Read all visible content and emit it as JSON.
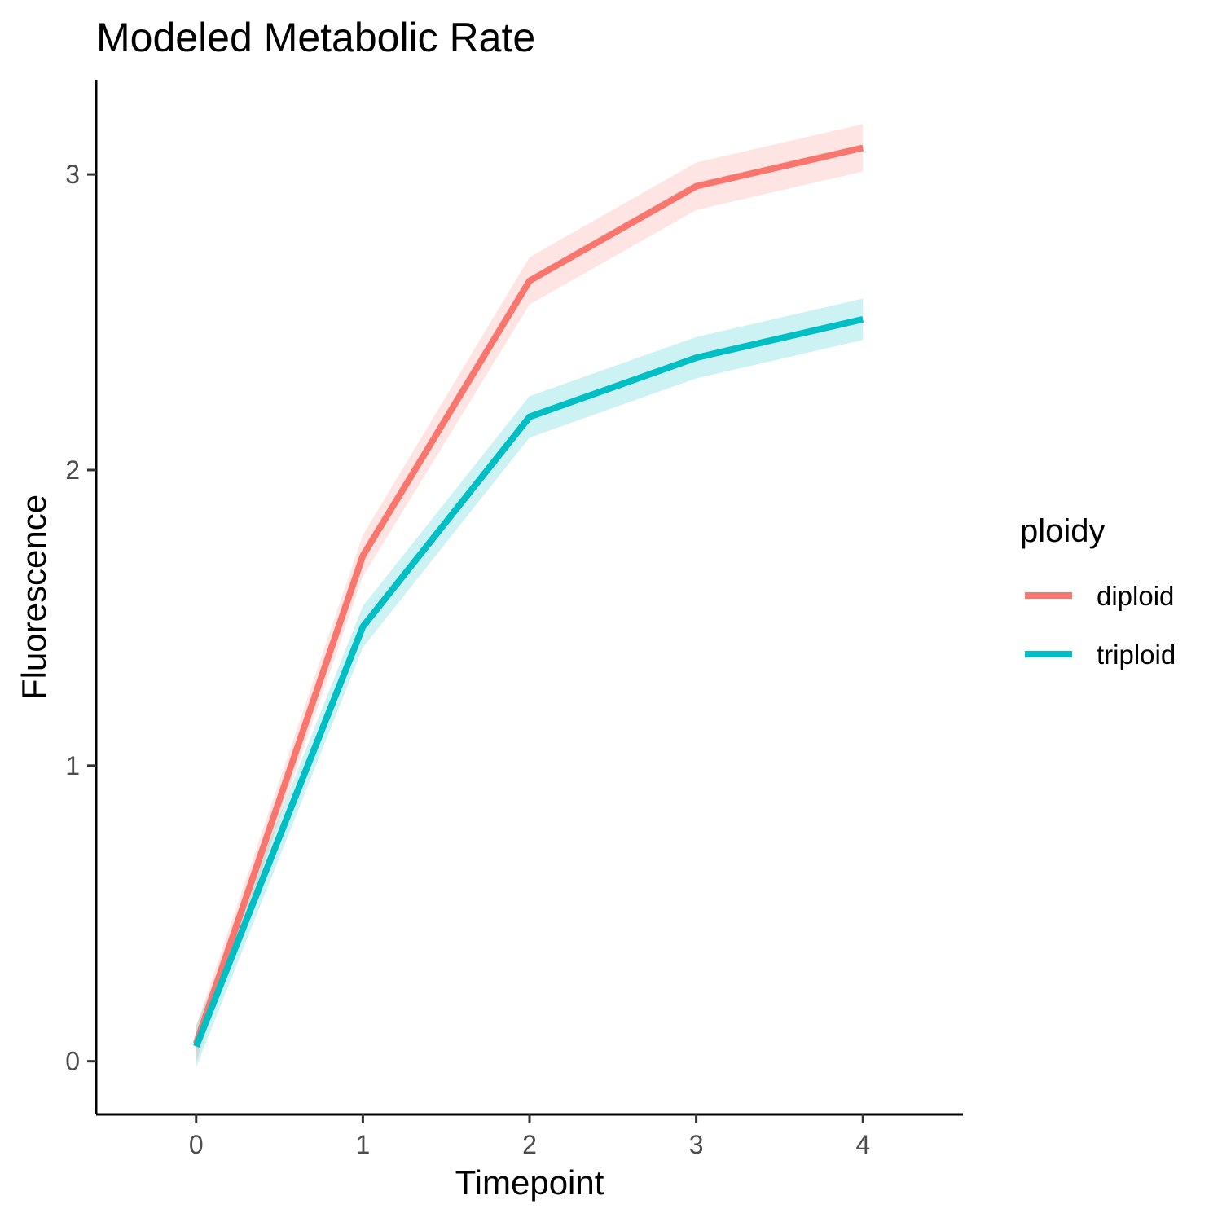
{
  "chart_data": {
    "type": "line",
    "title": "Modeled Metabolic Rate",
    "xlabel": "Timepoint",
    "ylabel": "Fluorescence",
    "x": [
      0,
      1,
      2,
      3,
      4
    ],
    "xlim": [
      -0.6,
      4.6
    ],
    "ylim": [
      -0.18,
      3.32
    ],
    "x_ticks": [
      "0",
      "1",
      "2",
      "3",
      "4"
    ],
    "y_ticks": [
      "0",
      "1",
      "2",
      "3"
    ],
    "grid": false,
    "legend": {
      "title": "ploidy",
      "position": "right"
    },
    "series": [
      {
        "name": "diploid",
        "color": "#F8766D",
        "values": [
          0.06,
          1.71,
          2.64,
          2.96,
          3.09
        ],
        "lower": [
          0.0,
          1.64,
          2.56,
          2.88,
          3.01
        ],
        "upper": [
          0.12,
          1.78,
          2.72,
          3.04,
          3.17
        ]
      },
      {
        "name": "triploid",
        "color": "#00BFC4",
        "values": [
          0.05,
          1.47,
          2.18,
          2.38,
          2.51
        ],
        "lower": [
          -0.02,
          1.4,
          2.11,
          2.31,
          2.44
        ],
        "upper": [
          0.12,
          1.54,
          2.25,
          2.45,
          2.58
        ]
      }
    ]
  }
}
